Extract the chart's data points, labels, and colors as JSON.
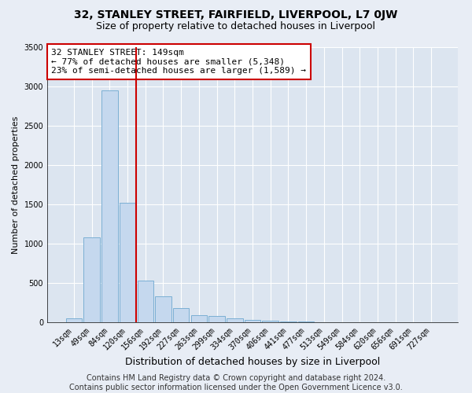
{
  "title": "32, STANLEY STREET, FAIRFIELD, LIVERPOOL, L7 0JW",
  "subtitle": "Size of property relative to detached houses in Liverpool",
  "xlabel": "Distribution of detached houses by size in Liverpool",
  "ylabel": "Number of detached properties",
  "footer_line1": "Contains HM Land Registry data © Crown copyright and database right 2024.",
  "footer_line2": "Contains public sector information licensed under the Open Government Licence v3.0.",
  "annotation_line1": "32 STANLEY STREET: 149sqm",
  "annotation_line2": "← 77% of detached houses are smaller (5,348)",
  "annotation_line3": "23% of semi-detached houses are larger (1,589) →",
  "categories": [
    "13sqm",
    "49sqm",
    "84sqm",
    "120sqm",
    "156sqm",
    "192sqm",
    "227sqm",
    "263sqm",
    "299sqm",
    "334sqm",
    "370sqm",
    "406sqm",
    "441sqm",
    "477sqm",
    "513sqm",
    "549sqm",
    "584sqm",
    "620sqm",
    "656sqm",
    "691sqm",
    "727sqm"
  ],
  "values": [
    55,
    1080,
    2950,
    1520,
    530,
    330,
    185,
    90,
    80,
    50,
    30,
    20,
    15,
    8,
    3,
    2,
    1,
    0,
    0,
    0,
    0
  ],
  "bar_color": "#c5d8ee",
  "bar_edge_color": "#7bafd4",
  "vline_color": "#cc0000",
  "vline_x": 3.5,
  "box_color": "#ffffff",
  "box_edge_color": "#cc0000",
  "ylim": [
    0,
    3500
  ],
  "yticks": [
    0,
    500,
    1000,
    1500,
    2000,
    2500,
    3000,
    3500
  ],
  "bg_color": "#e8edf5",
  "plot_bg_color": "#dce5f0",
  "grid_color": "#ffffff",
  "title_fontsize": 10,
  "subtitle_fontsize": 9,
  "xlabel_fontsize": 9,
  "ylabel_fontsize": 8,
  "tick_fontsize": 7,
  "annotation_fontsize": 8,
  "footer_fontsize": 7
}
